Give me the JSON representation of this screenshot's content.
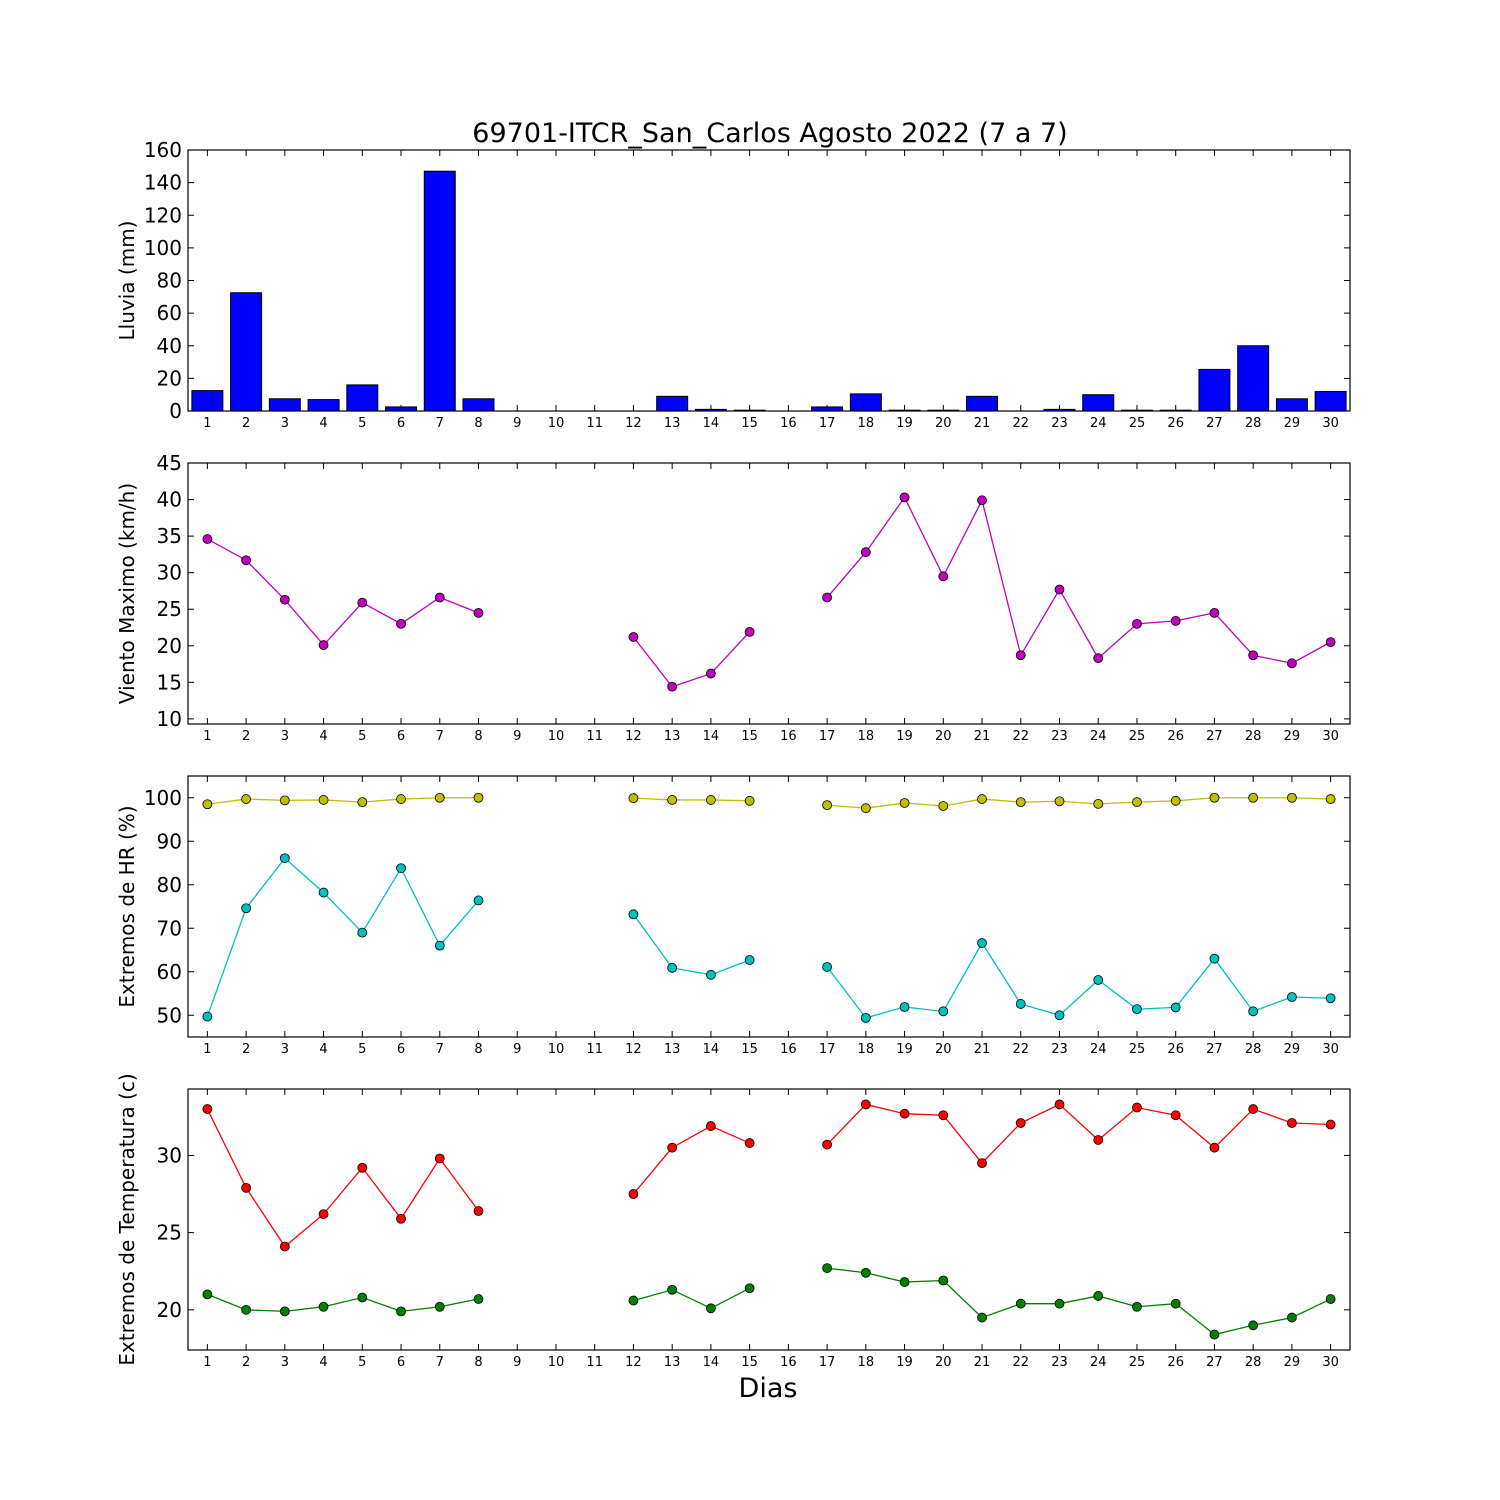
{
  "figure": {
    "title": "69701-ITCR_San_Carlos Agosto 2022  (7 a 7)",
    "xlabel": "Dias"
  },
  "chart_data": [
    {
      "type": "bar",
      "ylabel": "Lluvia (mm)",
      "ylim": [
        0,
        160
      ],
      "yticks": [
        0,
        20,
        40,
        60,
        80,
        100,
        120,
        140,
        160
      ],
      "x": [
        1,
        2,
        3,
        4,
        5,
        6,
        7,
        8,
        9,
        10,
        11,
        12,
        13,
        14,
        15,
        16,
        17,
        18,
        19,
        20,
        21,
        22,
        23,
        24,
        25,
        26,
        27,
        28,
        29,
        30
      ],
      "series": [
        {
          "color": "#0000ff",
          "values": [
            12.5,
            72.5,
            7.5,
            7.0,
            16.0,
            2.5,
            147.0,
            7.5,
            0,
            0,
            0,
            0,
            9.0,
            1.0,
            0.5,
            0,
            2.5,
            10.5,
            0.5,
            0.5,
            9.0,
            0,
            1.0,
            10.0,
            0.5,
            0.5,
            25.5,
            40.0,
            7.5,
            12.0
          ]
        }
      ],
      "grid": false
    },
    {
      "type": "line",
      "ylabel": "Viento Maximo (km/h)",
      "ylim": [
        9.3,
        45
      ],
      "yticks": [
        10,
        15,
        20,
        25,
        30,
        35,
        40,
        45
      ],
      "x": [
        1,
        2,
        3,
        4,
        5,
        6,
        7,
        8,
        9,
        10,
        11,
        12,
        13,
        14,
        15,
        16,
        17,
        18,
        19,
        20,
        21,
        22,
        23,
        24,
        25,
        26,
        27,
        28,
        29,
        30
      ],
      "series": [
        {
          "color": "#bf00bf",
          "values": [
            34.6,
            31.7,
            26.3,
            20.1,
            25.9,
            23.0,
            26.6,
            24.5,
            null,
            null,
            null,
            21.2,
            14.4,
            16.2,
            21.9,
            null,
            26.6,
            32.8,
            40.3,
            29.5,
            39.9,
            18.7,
            27.7,
            18.3,
            23.0,
            23.4,
            24.5,
            18.7,
            17.6,
            20.5
          ]
        }
      ],
      "grid": false
    },
    {
      "type": "line",
      "ylabel": "Extremos de HR (%)",
      "ylim": [
        45,
        105
      ],
      "yticks": [
        50,
        60,
        70,
        80,
        90,
        100
      ],
      "x": [
        1,
        2,
        3,
        4,
        5,
        6,
        7,
        8,
        9,
        10,
        11,
        12,
        13,
        14,
        15,
        16,
        17,
        18,
        19,
        20,
        21,
        22,
        23,
        24,
        25,
        26,
        27,
        28,
        29,
        30
      ],
      "series": [
        {
          "color": "#bfbf00",
          "values": [
            98.5,
            99.7,
            99.4,
            99.5,
            99.0,
            99.7,
            100.0,
            100.0,
            null,
            null,
            null,
            99.9,
            99.5,
            99.5,
            99.3,
            null,
            98.3,
            97.6,
            98.8,
            98.1,
            99.7,
            99.0,
            99.2,
            98.6,
            99.0,
            99.3,
            100.0,
            100.0,
            100.0,
            99.7
          ]
        },
        {
          "color": "#00bfbf",
          "values": [
            49.7,
            74.6,
            86.1,
            78.2,
            69.0,
            83.8,
            66.0,
            76.4,
            null,
            null,
            null,
            73.2,
            60.9,
            59.3,
            62.7,
            null,
            61.1,
            49.4,
            51.9,
            50.9,
            66.6,
            52.6,
            50.0,
            58.1,
            51.4,
            51.8,
            63.0,
            50.9,
            54.2,
            53.9
          ]
        }
      ],
      "grid": false
    },
    {
      "type": "line",
      "ylabel": "Extremos de Temperatura (c)",
      "ylim": [
        17.4,
        34.3
      ],
      "yticks": [
        20,
        25,
        30
      ],
      "x": [
        1,
        2,
        3,
        4,
        5,
        6,
        7,
        8,
        9,
        10,
        11,
        12,
        13,
        14,
        15,
        16,
        17,
        18,
        19,
        20,
        21,
        22,
        23,
        24,
        25,
        26,
        27,
        28,
        29,
        30
      ],
      "series": [
        {
          "color": "#ff0000",
          "values": [
            33.0,
            27.9,
            24.1,
            26.2,
            29.2,
            25.9,
            29.8,
            26.4,
            null,
            null,
            null,
            27.5,
            30.5,
            31.9,
            30.8,
            null,
            30.7,
            33.3,
            32.7,
            32.6,
            29.5,
            32.1,
            33.3,
            31.0,
            33.1,
            32.6,
            30.5,
            33.0,
            32.1,
            32.0
          ]
        },
        {
          "color": "#008000",
          "values": [
            21.0,
            20.0,
            19.9,
            20.2,
            20.8,
            19.9,
            20.2,
            20.7,
            null,
            null,
            null,
            20.6,
            21.3,
            20.1,
            21.4,
            null,
            22.7,
            22.4,
            21.8,
            21.9,
            19.5,
            20.4,
            20.4,
            20.9,
            20.2,
            20.4,
            18.4,
            19.0,
            19.5,
            20.7
          ]
        }
      ],
      "grid": false
    }
  ]
}
